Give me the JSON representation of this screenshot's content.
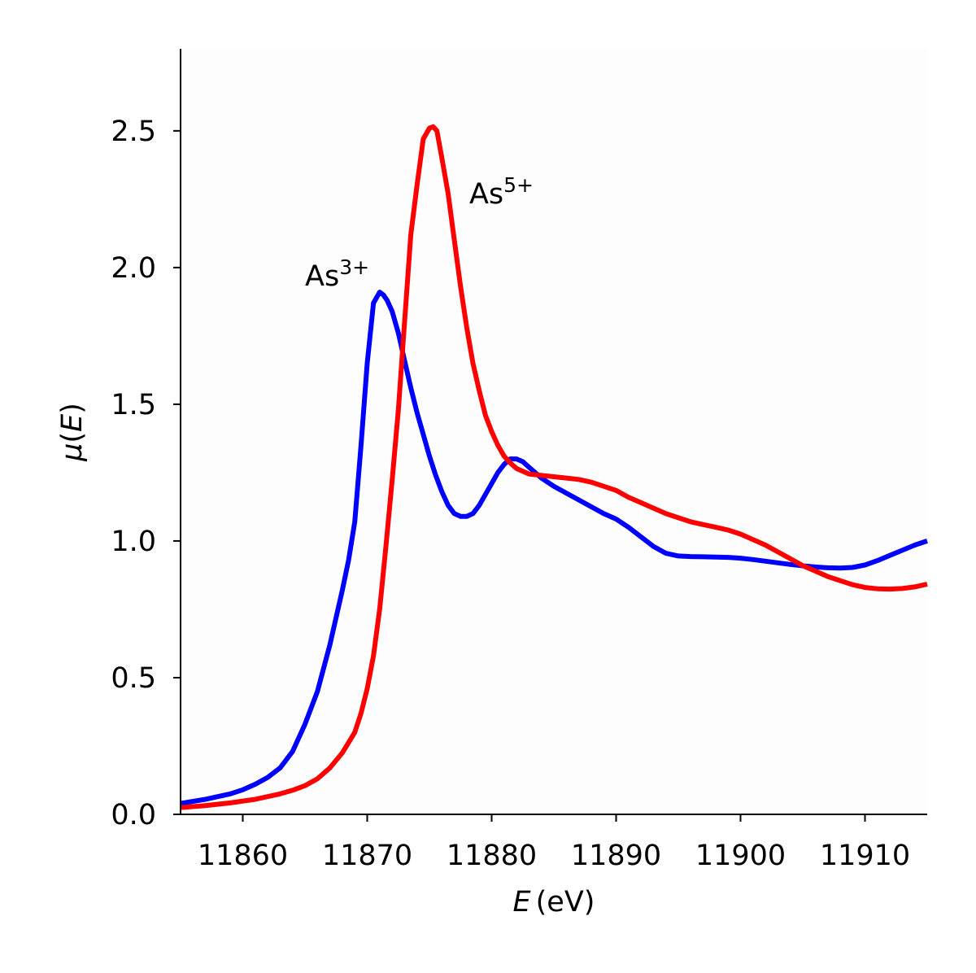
{
  "chart_data": {
    "type": "line",
    "xlabel_symbol": "E",
    "xlabel_unit": "(eV)",
    "ylabel_symbol": "μ",
    "ylabel_arg": "E",
    "xlim": [
      11855,
      11915
    ],
    "ylim": [
      0,
      2.8
    ],
    "x_ticks": [
      11860,
      11870,
      11880,
      11890,
      11900,
      11910
    ],
    "x_tick_labels": [
      "11860",
      "11870",
      "11880",
      "11890",
      "11900",
      "11910"
    ],
    "y_ticks": [
      0.0,
      0.5,
      1.0,
      1.5,
      2.0,
      2.5
    ],
    "y_tick_labels": [
      "0.0",
      "0.5",
      "1.0",
      "1.5",
      "2.0",
      "2.5"
    ],
    "grid": false,
    "annotations": [
      {
        "base": "As",
        "sup": "3+",
        "x": 11865,
        "y": 1.97
      },
      {
        "base": "As",
        "sup": "5+",
        "x": 11878.2,
        "y": 2.27
      }
    ],
    "series": [
      {
        "color": "#0000ff",
        "x": [
          11855,
          11857,
          11859,
          11860,
          11861,
          11862,
          11863,
          11864,
          11865,
          11866,
          11867,
          11868,
          11868.5,
          11869,
          11869.5,
          11870,
          11870.5,
          11871,
          11871.3,
          11871.6,
          11872,
          11872.5,
          11873,
          11873.5,
          11874,
          11874.5,
          11875,
          11875.5,
          11876,
          11876.5,
          11877,
          11877.5,
          11878,
          11878.5,
          11879,
          11879.5,
          11880,
          11880.5,
          11881,
          11881.5,
          11882,
          11882.5,
          11883,
          11884,
          11885,
          11886,
          11887,
          11888,
          11889,
          11890,
          11891,
          11892,
          11893,
          11894,
          11895,
          11896,
          11897,
          11898,
          11899,
          11900,
          11901,
          11902,
          11903,
          11904,
          11905,
          11906,
          11907,
          11908,
          11909,
          11910,
          11911,
          11912,
          11913,
          11914,
          11915
        ],
        "y": [
          0.04,
          0.055,
          0.075,
          0.09,
          0.11,
          0.135,
          0.17,
          0.23,
          0.33,
          0.45,
          0.62,
          0.82,
          0.93,
          1.07,
          1.35,
          1.65,
          1.87,
          1.91,
          1.9,
          1.88,
          1.84,
          1.76,
          1.66,
          1.56,
          1.47,
          1.39,
          1.31,
          1.24,
          1.18,
          1.13,
          1.1,
          1.09,
          1.09,
          1.1,
          1.13,
          1.17,
          1.21,
          1.25,
          1.28,
          1.3,
          1.3,
          1.29,
          1.27,
          1.23,
          1.2,
          1.175,
          1.15,
          1.125,
          1.1,
          1.08,
          1.05,
          1.015,
          0.98,
          0.955,
          0.945,
          0.943,
          0.942,
          0.941,
          0.94,
          0.937,
          0.932,
          0.926,
          0.92,
          0.914,
          0.909,
          0.905,
          0.902,
          0.901,
          0.903,
          0.912,
          0.928,
          0.947,
          0.966,
          0.985,
          1.0
        ]
      },
      {
        "color": "#ff0000",
        "x": [
          11855,
          11857,
          11859,
          11861,
          11863,
          11864,
          11865,
          11866,
          11867,
          11868,
          11869,
          11869.5,
          11870,
          11870.5,
          11871,
          11871.5,
          11872,
          11872.5,
          11873,
          11873.5,
          11874,
          11874.5,
          11875,
          11875.3,
          11875.6,
          11876,
          11876.5,
          11877,
          11877.5,
          11878,
          11878.5,
          11879,
          11879.5,
          11880,
          11880.5,
          11881,
          11881.5,
          11882,
          11883,
          11884,
          11885,
          11886,
          11887,
          11888,
          11889,
          11890,
          11891,
          11892,
          11893,
          11894,
          11895,
          11896,
          11897,
          11898,
          11899,
          11900,
          11901,
          11902,
          11903,
          11904,
          11905,
          11906,
          11907,
          11908,
          11909,
          11910,
          11911,
          11912,
          11913,
          11914,
          11915
        ],
        "y": [
          0.025,
          0.032,
          0.042,
          0.055,
          0.075,
          0.088,
          0.105,
          0.13,
          0.17,
          0.225,
          0.3,
          0.37,
          0.46,
          0.58,
          0.75,
          0.98,
          1.22,
          1.48,
          1.8,
          2.12,
          2.3,
          2.47,
          2.51,
          2.515,
          2.5,
          2.4,
          2.27,
          2.1,
          1.93,
          1.78,
          1.65,
          1.55,
          1.46,
          1.4,
          1.35,
          1.31,
          1.285,
          1.265,
          1.245,
          1.24,
          1.235,
          1.23,
          1.225,
          1.215,
          1.2,
          1.185,
          1.16,
          1.14,
          1.12,
          1.1,
          1.085,
          1.07,
          1.06,
          1.05,
          1.04,
          1.025,
          1.005,
          0.985,
          0.96,
          0.935,
          0.91,
          0.89,
          0.87,
          0.855,
          0.84,
          0.83,
          0.825,
          0.824,
          0.826,
          0.832,
          0.842
        ]
      }
    ]
  }
}
